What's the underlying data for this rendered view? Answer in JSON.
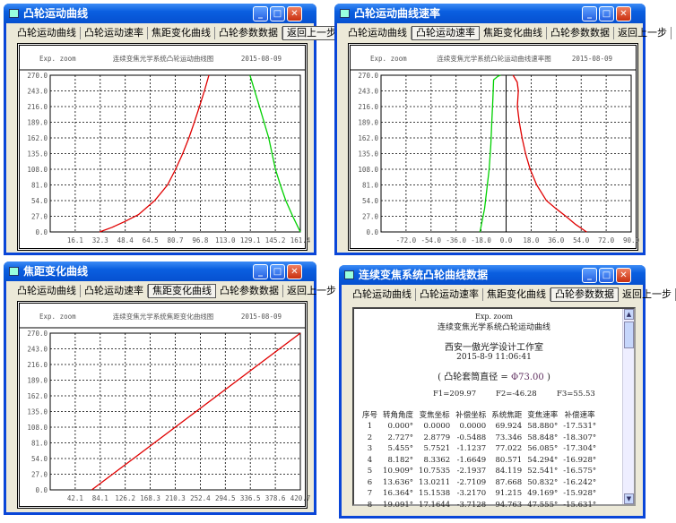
{
  "tabs": [
    "凸轮运动曲线",
    "凸轮运动速率",
    "焦距变化曲线",
    "凸轮参数数据",
    "返回上一步"
  ],
  "colors": {
    "curve_red": "#e00000",
    "curve_green": "#00d000",
    "titlebar": "#0a5fe0"
  },
  "windows": [
    {
      "title": "凸轮运动曲线",
      "selected_tab": 4,
      "chart_index": 0
    },
    {
      "title": "凸轮运动曲线速率",
      "selected_tab": 1,
      "chart_index": 1
    },
    {
      "title": "焦距变化曲线",
      "selected_tab": 2,
      "chart_index": 2
    },
    {
      "title": "连续变焦系统凸轮曲线数据",
      "selected_tab": 3
    }
  ],
  "chart_data": [
    {
      "type": "line",
      "header_left": "Exp. zoom",
      "title": "连续变焦光学系统凸轮运动曲线图",
      "date": "2015-08-09",
      "xlim": [
        0,
        161.4
      ],
      "ylim": [
        0,
        270
      ],
      "grid": true,
      "xticks": [
        "16.1",
        "32.3",
        "48.4",
        "64.5",
        "80.7",
        "96.8",
        "113.0",
        "129.1",
        "145.2",
        "161.4"
      ],
      "yticks": [
        "0.0",
        "27.0",
        "54.0",
        "81.0",
        "108.0",
        "135.0",
        "162.0",
        "189.0",
        "216.0",
        "243.0",
        "270.0"
      ],
      "series": [
        {
          "color": "#e00000",
          "points": [
            [
              31.9,
              0
            ],
            [
              40,
              8
            ],
            [
              48.2,
              18
            ],
            [
              57,
              30
            ],
            [
              67.4,
              54
            ],
            [
              75.7,
              81
            ],
            [
              80.9,
              108
            ],
            [
              85.5,
              135
            ],
            [
              89.5,
              162
            ],
            [
              93,
              189
            ],
            [
              96.3,
              216
            ],
            [
              99.5,
              243
            ],
            [
              102.4,
              270
            ]
          ]
        },
        {
          "color": "#00d000",
          "points": [
            [
              128.9,
              270
            ],
            [
              135,
              216
            ],
            [
              141,
              162
            ],
            [
              145.3,
              108
            ],
            [
              148.5,
              81
            ],
            [
              152,
              54
            ],
            [
              156.5,
              27
            ],
            [
              161.4,
              0
            ]
          ]
        }
      ]
    },
    {
      "type": "line",
      "header_left": "Exp. zoom",
      "title": "连续变焦光学系统凸轮运动曲线速率图",
      "date": "2015-08-09",
      "xlim": [
        -90,
        90
      ],
      "ylim": [
        0,
        270
      ],
      "grid": true,
      "zero_axis": true,
      "xticks": [
        "-72.0",
        "-54.0",
        "-36.0",
        "-18.0",
        "0.0",
        "18.0",
        "36.0",
        "54.0",
        "72.0",
        "90.0"
      ],
      "yticks": [
        "0.0",
        "27.0",
        "54.0",
        "81.0",
        "108.0",
        "135.0",
        "162.0",
        "189.0",
        "216.0",
        "243.0",
        "270.0"
      ],
      "series": [
        {
          "color": "#00d000",
          "points": [
            [
              -18.8,
              0
            ],
            [
              -15.5,
              40
            ],
            [
              -13.5,
              81
            ],
            [
              -12.2,
              108
            ],
            [
              -11,
              150
            ],
            [
              -10.3,
              189
            ],
            [
              -9.5,
              230
            ],
            [
              -9,
              262
            ],
            [
              -6,
              268
            ],
            [
              -4,
              270
            ]
          ]
        },
        {
          "color": "#e00000",
          "points": [
            [
              57.9,
              0
            ],
            [
              50,
              13
            ],
            [
              43,
              27
            ],
            [
              36,
              40
            ],
            [
              29,
              54
            ],
            [
              22,
              81
            ],
            [
              17.3,
              108
            ],
            [
              14,
              135
            ],
            [
              11.5,
              162
            ],
            [
              9.5,
              189
            ],
            [
              8.1,
              216
            ],
            [
              8.8,
              243
            ],
            [
              8,
              258
            ],
            [
              5,
              270
            ]
          ]
        }
      ]
    },
    {
      "type": "line",
      "header_left": "Exp. zoom",
      "title": "连续变焦光学系统焦距变化曲线图",
      "date": "2015-08-09",
      "xlim": [
        0,
        420.7
      ],
      "ylim": [
        0,
        270
      ],
      "grid": true,
      "xticks": [
        "42.1",
        "84.1",
        "126.2",
        "168.3",
        "210.3",
        "252.4",
        "294.5",
        "336.5",
        "378.6",
        "420.7"
      ],
      "yticks": [
        "0.0",
        "27.0",
        "54.0",
        "81.0",
        "108.0",
        "135.0",
        "162.0",
        "189.0",
        "216.0",
        "243.0",
        "270.0"
      ],
      "series": [
        {
          "color": "#e00000",
          "points": [
            [
              69.9,
              0
            ],
            [
              420.7,
              270
            ]
          ]
        }
      ]
    }
  ],
  "report": {
    "header": "Exp. zoom",
    "title": "连续变焦光学系统凸轮运动曲线",
    "studio": "西安一傲光学设计工作室",
    "datetime": "2015-8-9 11:06:41",
    "diameter_label": "( 凸轮套筒直径 = ",
    "diameter_value": "Φ73.00",
    "diameter_close": " )",
    "f1": "F1=209.97",
    "f2": "F2=-46.28",
    "f3": "F3=55.53",
    "columns": [
      "序号",
      "转角角度",
      "变焦坐标",
      "补偿坐标",
      "系统焦距",
      "变焦速率",
      "补偿速率"
    ],
    "rows": [
      [
        "1",
        "0.000°",
        "0.0000",
        "0.0000",
        "69.924",
        "58.880°",
        "-17.531°"
      ],
      [
        "2",
        "2.727°",
        "2.8779",
        "-0.5488",
        "73.346",
        "58.848°",
        "-18.307°"
      ],
      [
        "3",
        "5.455°",
        "5.7521",
        "-1.1237",
        "77.022",
        "56.085°",
        "-17.304°"
      ],
      [
        "4",
        "8.182°",
        "8.3362",
        "-1.6649",
        "80.571",
        "54.294°",
        "-16.928°"
      ],
      [
        "5",
        "10.909°",
        "10.7535",
        "-2.1937",
        "84.119",
        "52.541°",
        "-16.575°"
      ],
      [
        "6",
        "13.636°",
        "13.0211",
        "-2.7109",
        "87.668",
        "50.832°",
        "-16.242°"
      ],
      [
        "7",
        "16.364°",
        "15.1538",
        "-3.2170",
        "91.215",
        "49.169°",
        "-15.928°"
      ],
      [
        "8",
        "19.091°",
        "17.1644",
        "-3.7128",
        "94.763",
        "47.555°",
        "-15.631°"
      ]
    ]
  }
}
